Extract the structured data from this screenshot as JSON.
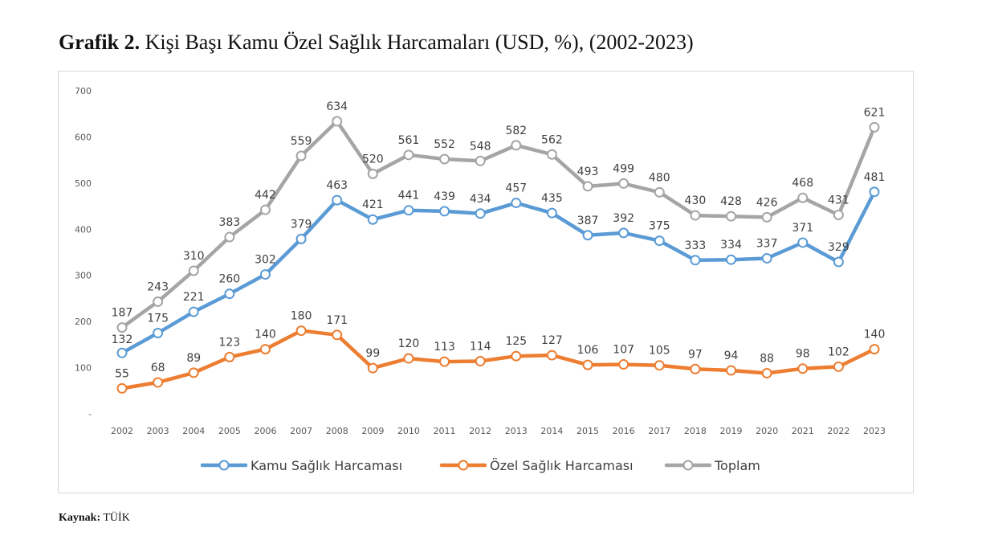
{
  "caption": {
    "prefix": "Grafik 2.",
    "title": "Kişi Başı Kamu Özel Sağlık Harcamaları (USD, %), (2002-2023)"
  },
  "source": {
    "label": "Kaynak:",
    "value": "TÜİK"
  },
  "chart_data": {
    "type": "line",
    "x": [
      "2002",
      "2003",
      "2004",
      "2005",
      "2006",
      "2007",
      "2008",
      "2009",
      "2010",
      "2011",
      "2012",
      "2013",
      "2014",
      "2015",
      "2016",
      "2017",
      "2018",
      "2019",
      "2020",
      "2021",
      "2022",
      "2023"
    ],
    "ylim": [
      0,
      700
    ],
    "yticks": [
      0,
      100,
      200,
      300,
      400,
      500,
      600,
      700
    ],
    "ytick_labels": [
      "-",
      "100",
      "200",
      "300",
      "400",
      "500",
      "600",
      "700"
    ],
    "grid": false,
    "legend_position": "bottom",
    "series": [
      {
        "name": "Kamu Sağlık Harcaması",
        "color": "#5b9bd5",
        "values": [
          132,
          175,
          221,
          260,
          302,
          379,
          463,
          421,
          441,
          439,
          434,
          457,
          435,
          387,
          392,
          375,
          333,
          334,
          337,
          371,
          329,
          481
        ]
      },
      {
        "name": "Özel Sağlık Harcaması",
        "color": "#ed7d31",
        "values": [
          55,
          68,
          89,
          123,
          140,
          180,
          171,
          99,
          120,
          113,
          114,
          125,
          127,
          106,
          107,
          105,
          97,
          94,
          88,
          98,
          102,
          140
        ]
      },
      {
        "name": "Toplam",
        "color": "#a5a5a5",
        "values": [
          187,
          243,
          310,
          383,
          442,
          559,
          634,
          520,
          561,
          552,
          548,
          582,
          562,
          493,
          499,
          480,
          430,
          428,
          426,
          468,
          431,
          621
        ]
      }
    ]
  }
}
